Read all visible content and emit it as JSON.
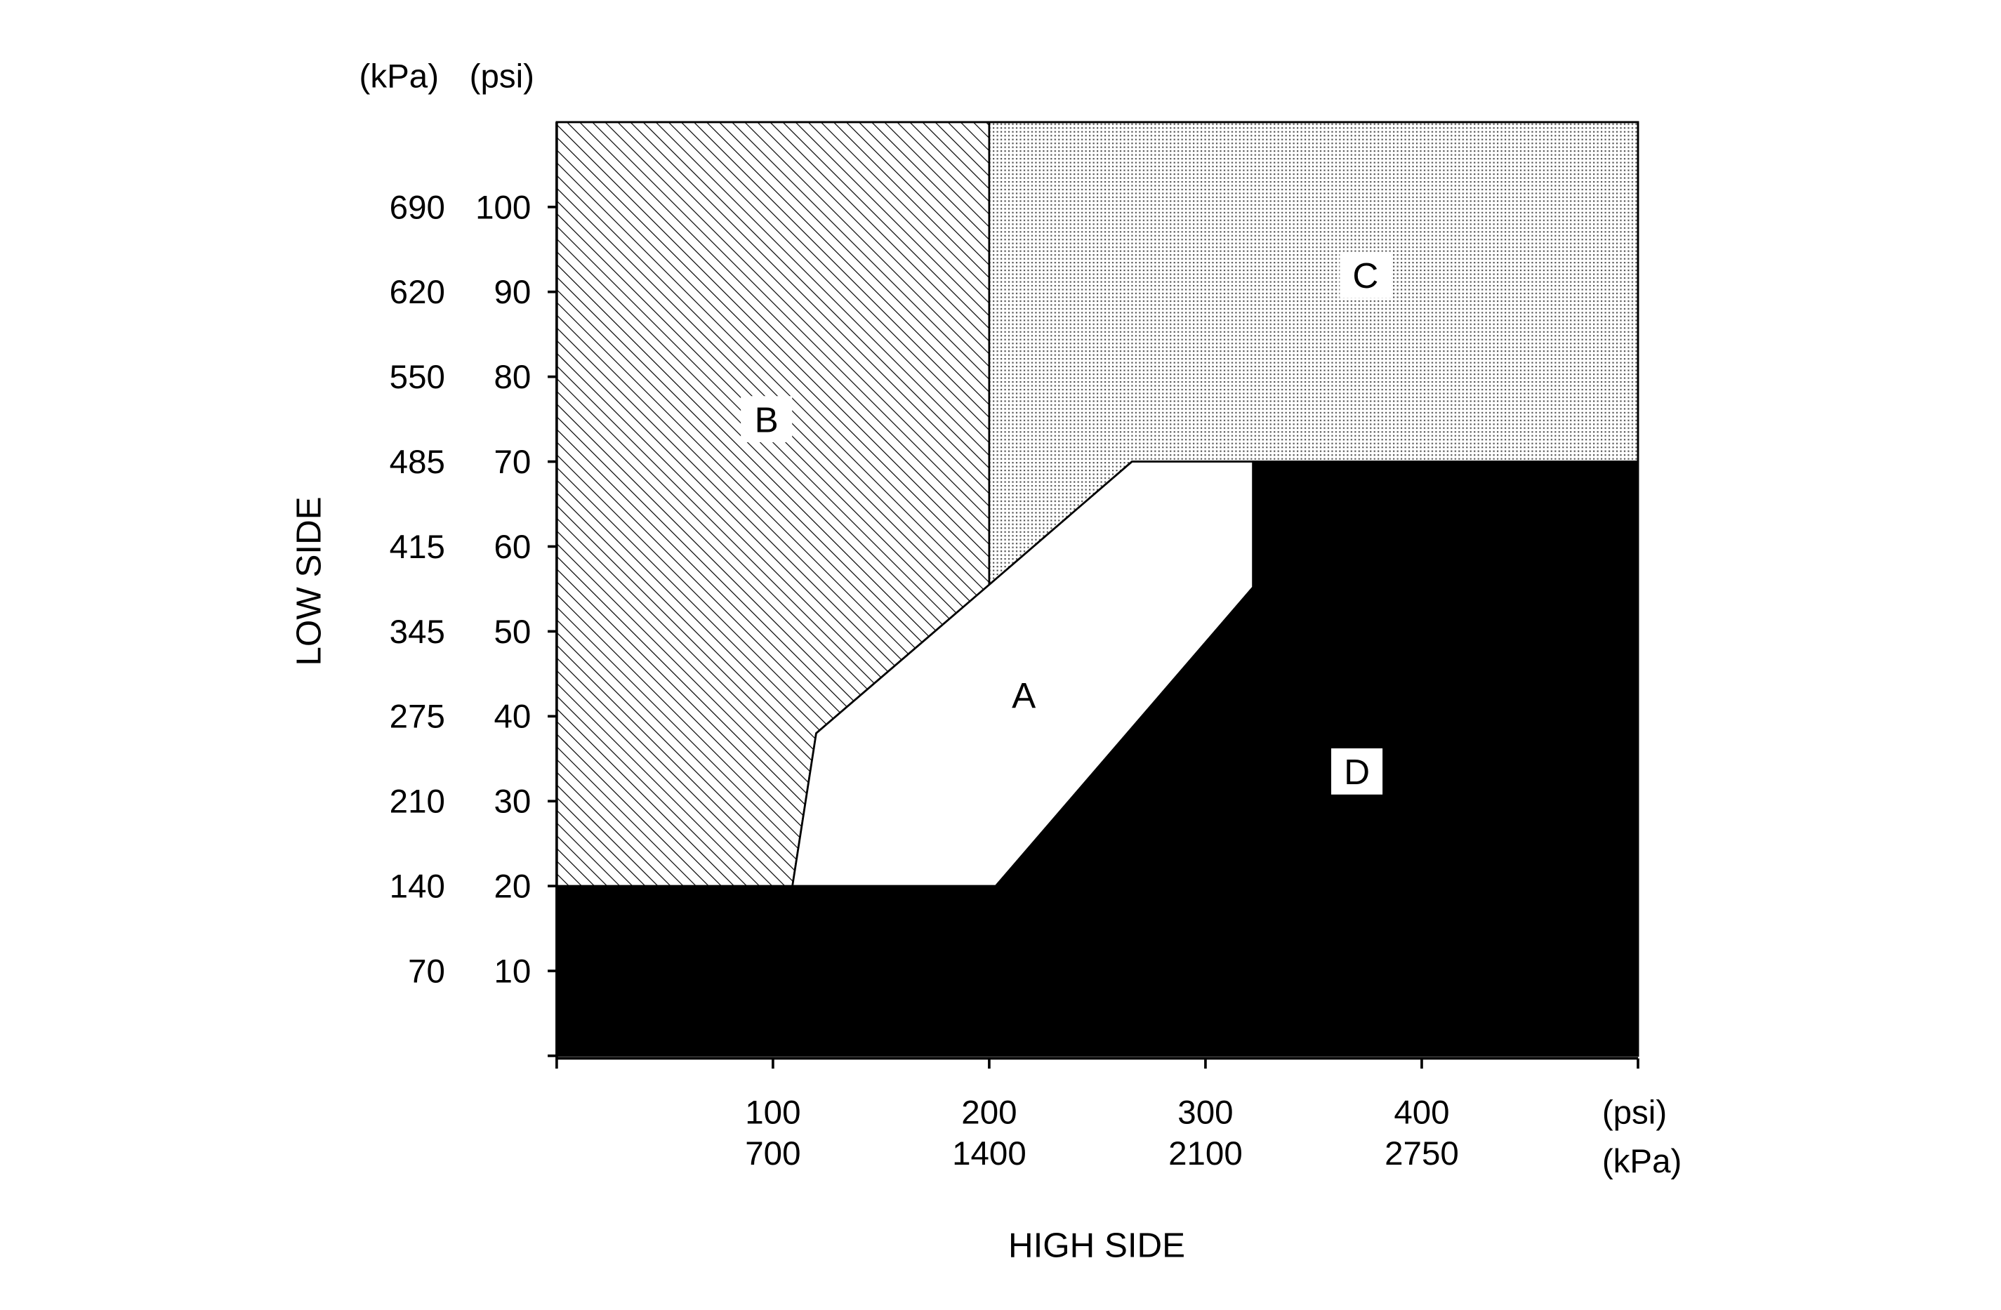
{
  "chart_data": {
    "type": "area",
    "title": "",
    "xlabel": "HIGH SIDE",
    "ylabel": "LOW SIDE",
    "x_units": [
      "(psi)",
      "(kPa)"
    ],
    "y_units": [
      "(kPa)",
      "(psi)"
    ],
    "xlim": [
      0,
      500
    ],
    "ylim": [
      0,
      110
    ],
    "grid": false,
    "x_ticks": [
      {
        "psi": 0,
        "psi_label": "",
        "kpa_label": ""
      },
      {
        "psi": 100,
        "psi_label": "100",
        "kpa_label": "700"
      },
      {
        "psi": 200,
        "psi_label": "200",
        "kpa_label": "1400"
      },
      {
        "psi": 300,
        "psi_label": "300",
        "kpa_label": "2100"
      },
      {
        "psi": 400,
        "psi_label": "400",
        "kpa_label": "2750"
      },
      {
        "psi": 500,
        "psi_label": "",
        "kpa_label": ""
      }
    ],
    "y_ticks": [
      {
        "psi": 0,
        "psi_label": "",
        "kpa_label": ""
      },
      {
        "psi": 10,
        "psi_label": "10",
        "kpa_label": "70"
      },
      {
        "psi": 20,
        "psi_label": "20",
        "kpa_label": "140"
      },
      {
        "psi": 30,
        "psi_label": "30",
        "kpa_label": "210"
      },
      {
        "psi": 40,
        "psi_label": "40",
        "kpa_label": "275"
      },
      {
        "psi": 50,
        "psi_label": "50",
        "kpa_label": "345"
      },
      {
        "psi": 60,
        "psi_label": "60",
        "kpa_label": "415"
      },
      {
        "psi": 70,
        "psi_label": "70",
        "kpa_label": "485"
      },
      {
        "psi": 80,
        "psi_label": "80",
        "kpa_label": "550"
      },
      {
        "psi": 90,
        "psi_label": "90",
        "kpa_label": "620"
      },
      {
        "psi": 100,
        "psi_label": "100",
        "kpa_label": "690"
      }
    ],
    "regions": [
      {
        "label": "B",
        "fill": "hatch",
        "label_at": [
          97,
          75
        ],
        "polygon": [
          [
            0,
            20
          ],
          [
            0,
            110
          ],
          [
            200,
            110
          ],
          [
            200,
            55.5
          ],
          [
            120,
            38
          ],
          [
            109,
            20
          ]
        ]
      },
      {
        "label": "C",
        "fill": "dots",
        "label_at": [
          374,
          92
        ],
        "polygon": [
          [
            200,
            110
          ],
          [
            500,
            110
          ],
          [
            500,
            70
          ],
          [
            266,
            70
          ],
          [
            200,
            55.5
          ]
        ]
      },
      {
        "label": "A",
        "fill": "#ffffff",
        "label_at": [
          216,
          42.5
        ],
        "polygon": [
          [
            109,
            20
          ],
          [
            120,
            38
          ],
          [
            200,
            55.5
          ],
          [
            266,
            70
          ],
          [
            322,
            70
          ],
          [
            322,
            55.2
          ],
          [
            203,
            20
          ]
        ]
      },
      {
        "label": "D",
        "fill": "#000000",
        "label_at": [
          370,
          33.5
        ],
        "polygon": [
          [
            0,
            0
          ],
          [
            500,
            0
          ],
          [
            500,
            70
          ],
          [
            322,
            70
          ],
          [
            322,
            55.2
          ],
          [
            203,
            20
          ],
          [
            0,
            20
          ]
        ]
      }
    ]
  }
}
